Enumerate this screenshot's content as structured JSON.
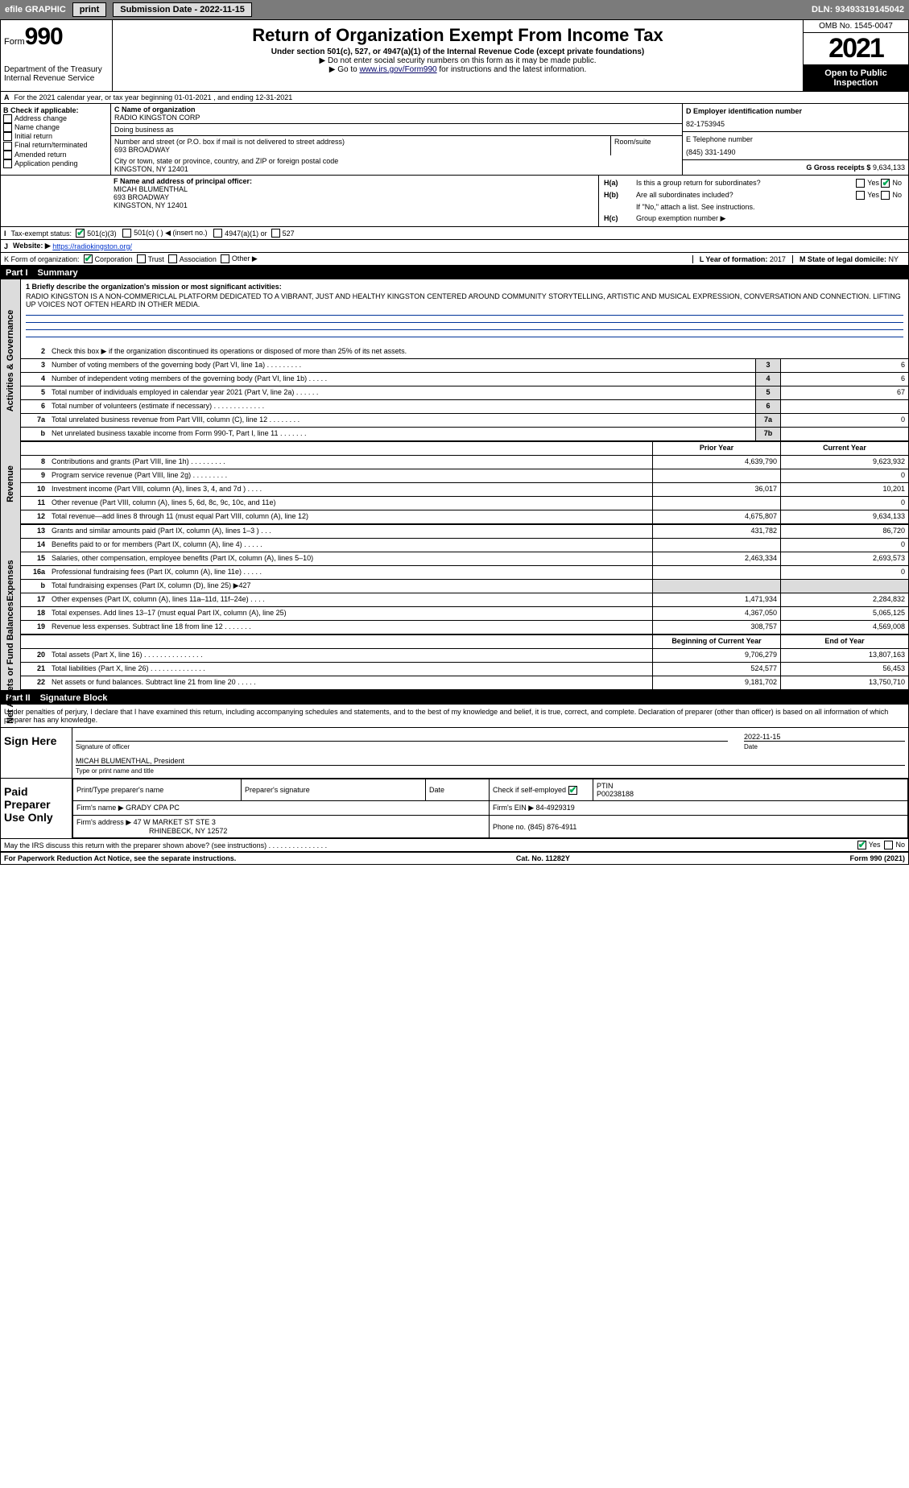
{
  "topbar": {
    "efile": "efile GRAPHIC",
    "print": "print",
    "subdate": "Submission Date - 2022-11-15",
    "dln": "DLN: 93493319145042"
  },
  "header": {
    "form": "Form",
    "formnum": "990",
    "dept": "Department of the Treasury",
    "irs": "Internal Revenue Service",
    "title": "Return of Organization Exempt From Income Tax",
    "sub1": "Under section 501(c), 527, or 4947(a)(1) of the Internal Revenue Code (except private foundations)",
    "sub2": "▶ Do not enter social security numbers on this form as it may be made public.",
    "sub3_pre": "▶ Go to ",
    "sub3_link": "www.irs.gov/Form990",
    "sub3_post": " for instructions and the latest information.",
    "omb": "OMB No. 1545-0047",
    "year": "2021",
    "pub": "Open to Public Inspection"
  },
  "A": {
    "text": "For the 2021 calendar year, or tax year beginning 01-01-2021    , and ending 12-31-2021"
  },
  "B": {
    "label": "B Check if applicable:",
    "opts": [
      "Address change",
      "Name change",
      "Initial return",
      "Final return/terminated",
      "Amended return",
      "Application pending"
    ]
  },
  "C": {
    "name_lbl": "C Name of organization",
    "name": "RADIO KINGSTON CORP",
    "dba_lbl": "Doing business as",
    "dba": "",
    "street_lbl": "Number and street (or P.O. box if mail is not delivered to street address)",
    "room_lbl": "Room/suite",
    "street": "693 BROADWAY",
    "city_lbl": "City or town, state or province, country, and ZIP or foreign postal code",
    "city": "KINGSTON, NY  12401"
  },
  "D": {
    "lbl": "D Employer identification number",
    "v": "82-1753945"
  },
  "E": {
    "lbl": "E Telephone number",
    "v": "(845) 331-1490"
  },
  "G": {
    "lbl": "G Gross receipts $",
    "v": "9,634,133"
  },
  "F": {
    "lbl": "F  Name and address of principal officer:",
    "name": "MICAH BLUMENTHAL",
    "addr1": "693 BROADWAY",
    "addr2": "KINGSTON, NY  12401"
  },
  "H": {
    "a": "Is this a group return for subordinates?",
    "b": "Are all subordinates included?",
    "b2": "If \"No,\" attach a list. See instructions.",
    "c": "Group exemption number ▶",
    "yes": "Yes",
    "no": "No"
  },
  "I": {
    "lbl": "Tax-exempt status:",
    "o1": "501(c)(3)",
    "o2": "501(c) (   ) ◀ (insert no.)",
    "o3": "4947(a)(1) or",
    "o4": "527"
  },
  "J": {
    "lbl": "Website: ▶",
    "v": "https://radiokingston.org/"
  },
  "K": {
    "lbl": "K Form of organization:",
    "o": [
      "Corporation",
      "Trust",
      "Association",
      "Other ▶"
    ]
  },
  "L": {
    "lbl": "L Year of formation:",
    "v": "2017"
  },
  "M": {
    "lbl": "M State of legal domicile:",
    "v": "NY"
  },
  "part1": {
    "n": "Part I",
    "t": "Summary"
  },
  "mission": {
    "q": "1  Briefly describe the organization's mission or most significant activities:",
    "v": "RADIO KINGSTON IS A NON-COMMERICLAL PLATFORM DEDICATED TO A VIBRANT, JUST AND HEALTHY KINGSTON CENTERED AROUND COMMUNITY STORYTELLING, ARTISTIC AND MUSICAL EXPRESSION, CONVERSATION AND CONNECTION. LIFTING UP VOICES NOT OFTEN HEARD IN OTHER MEDIA."
  },
  "ag": {
    "side": "Activities & Governance",
    "l2": "Check this box ▶        if the organization discontinued its operations or disposed of more than 25% of its net assets.",
    "l3": "Number of voting members of the governing body (Part VI, line 1a)   .    .    .    .    .    .    .    .    .",
    "l4": "Number of independent voting members of the governing body (Part VI, line 1b)   .    .    .    .    .",
    "l5": "Total number of individuals employed in calendar year 2021 (Part V, line 2a)   .    .    .    .    .    .",
    "l6": "Total number of volunteers (estimate if necessary)    .    .    .    .    .    .    .    .    .    .    .    .    .",
    "l7a": "Total unrelated business revenue from Part VIII, column (C), line 12   .    .    .    .    .    .    .    .",
    "l7b": "Net unrelated business taxable income from Form 990-T, Part I, line 11   .    .    .    .    .    .    .",
    "v3": "6",
    "v4": "6",
    "v5": "67",
    "v6": "",
    "v7a": "0",
    "v7b": ""
  },
  "rev": {
    "side": "Revenue",
    "hpy": "Prior Year",
    "hcy": "Current Year",
    "rows": [
      {
        "n": "8",
        "t": "Contributions and grants (Part VIII, line 1h)    .    .    .    .    .    .    .    .    .",
        "py": "4,639,790",
        "cy": "9,623,932"
      },
      {
        "n": "9",
        "t": "Program service revenue (Part VIII, line 2g)    .    .    .    .    .    .    .    .    .",
        "py": "",
        "cy": "0"
      },
      {
        "n": "10",
        "t": "Investment income (Part VIII, column (A), lines 3, 4, and 7d )    .    .    .    .",
        "py": "36,017",
        "cy": "10,201"
      },
      {
        "n": "11",
        "t": "Other revenue (Part VIII, column (A), lines 5, 6d, 8c, 9c, 10c, and 11e)",
        "py": "",
        "cy": "0"
      },
      {
        "n": "12",
        "t": "Total revenue—add lines 8 through 11 (must equal Part VIII, column (A), line 12)",
        "py": "4,675,807",
        "cy": "9,634,133"
      }
    ]
  },
  "exp": {
    "side": "Expenses",
    "rows": [
      {
        "n": "13",
        "t": "Grants and similar amounts paid (Part IX, column (A), lines 1–3 )   .    .    .",
        "py": "431,782",
        "cy": "86,720"
      },
      {
        "n": "14",
        "t": "Benefits paid to or for members (Part IX, column (A), line 4)   .    .    .    .    .",
        "py": "",
        "cy": "0"
      },
      {
        "n": "15",
        "t": "Salaries, other compensation, employee benefits (Part IX, column (A), lines 5–10)",
        "py": "2,463,334",
        "cy": "2,693,573"
      },
      {
        "n": "16a",
        "t": "Professional fundraising fees (Part IX, column (A), line 11e)    .    .    .    .    .",
        "py": "",
        "cy": "0"
      },
      {
        "n": "b",
        "t": "Total fundraising expenses (Part IX, column (D), line 25) ▶427",
        "py": "shade",
        "cy": "shade"
      },
      {
        "n": "17",
        "t": "Other expenses (Part IX, column (A), lines 11a–11d, 11f–24e)   .    .    .    .",
        "py": "1,471,934",
        "cy": "2,284,832"
      },
      {
        "n": "18",
        "t": "Total expenses. Add lines 13–17 (must equal Part IX, column (A), line 25)",
        "py": "4,367,050",
        "cy": "5,065,125"
      },
      {
        "n": "19",
        "t": "Revenue less expenses. Subtract line 18 from line 12   .    .    .    .    .    .    .",
        "py": "308,757",
        "cy": "4,569,008"
      }
    ]
  },
  "na": {
    "side": "Net Assets or Fund Balances",
    "hpy": "Beginning of Current Year",
    "hcy": "End of Year",
    "rows": [
      {
        "n": "20",
        "t": "Total assets (Part X, line 16)   .    .    .    .    .    .    .    .    .    .    .    .    .    .    .",
        "py": "9,706,279",
        "cy": "13,807,163"
      },
      {
        "n": "21",
        "t": "Total liabilities (Part X, line 26)   .    .    .    .    .    .    .    .    .    .    .    .    .    .",
        "py": "524,577",
        "cy": "56,453"
      },
      {
        "n": "22",
        "t": "Net assets or fund balances. Subtract line 21 from line 20   .    .    .    .    .",
        "py": "9,181,702",
        "cy": "13,750,710"
      }
    ]
  },
  "part2": {
    "n": "Part II",
    "t": "Signature Block"
  },
  "sig": {
    "decl": "Under penalties of perjury, I declare that I have examined this return, including accompanying schedules and statements, and to the best of my knowledge and belief, it is true, correct, and complete. Declaration of preparer (other than officer) is based on all information of which preparer has any knowledge.",
    "sign": "Sign Here",
    "sigoff_lbl": "Signature of officer",
    "date": "2022-11-15",
    "date_lbl": "Date",
    "name": "MICAH BLUMENTHAL, President",
    "name_lbl": "Type or print name and title",
    "paid": "Paid Preparer Use Only",
    "p_name_lbl": "Print/Type preparer's name",
    "p_sig_lbl": "Preparer's signature",
    "p_date_lbl": "Date",
    "p_se_lbl": "Check        if self-employed",
    "ptin_lbl": "PTIN",
    "ptin": "P00238188",
    "firm_lbl": "Firm's name    ▶",
    "firm": "GRADY CPA PC",
    "ein_lbl": "Firm's EIN ▶",
    "ein": "84-4929319",
    "addr_lbl": "Firm's address ▶",
    "addr": "47 W MARKET ST STE 3",
    "addr2": "RHINEBECK, NY  12572",
    "phone_lbl": "Phone no.",
    "phone": "(845) 876-4911",
    "discuss": "May the IRS discuss this return with the preparer shown above? (see instructions)   .    .    .    .    .    .    .    .    .    .    .    .    .    .    .",
    "yes": "Yes",
    "no": "No"
  },
  "footer": {
    "pra": "For Paperwork Reduction Act Notice, see the separate instructions.",
    "cat": "Cat. No. 11282Y",
    "form": "Form 990 (2021)"
  }
}
